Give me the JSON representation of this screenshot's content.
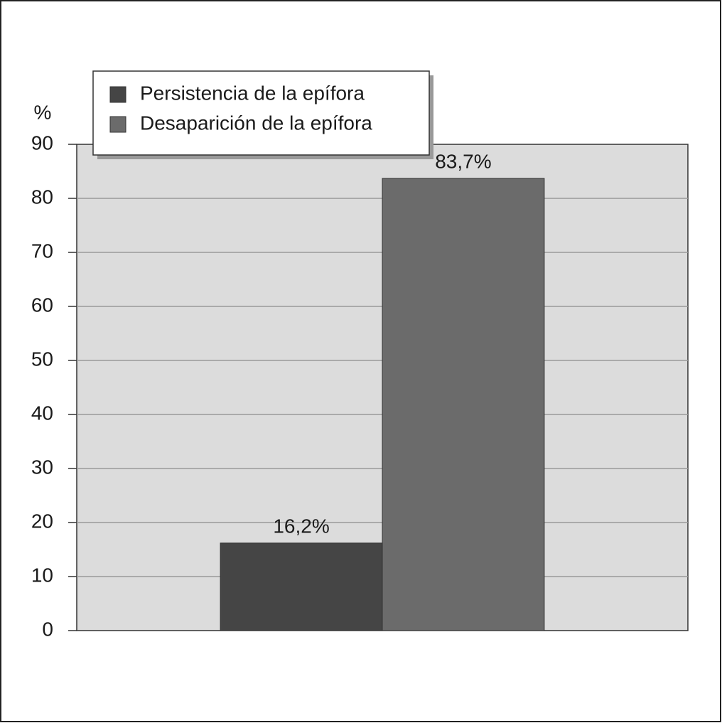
{
  "chart_data": {
    "type": "bar",
    "ylabel": "%",
    "categories": [
      null
    ],
    "series": [
      {
        "name": "Persistencia de la epífora",
        "color": "#454545",
        "values": [
          16.2
        ],
        "value_labels": [
          "16,2%"
        ]
      },
      {
        "name": "Desaparición de la epífora",
        "color": "#6b6b6b",
        "values": [
          83.7
        ],
        "value_labels": [
          "83,7%"
        ]
      }
    ],
    "ylim": [
      0,
      90
    ],
    "yticks": [
      0,
      10,
      20,
      30,
      40,
      50,
      60,
      70,
      80,
      90
    ],
    "grid": true,
    "legend": "upper left"
  }
}
